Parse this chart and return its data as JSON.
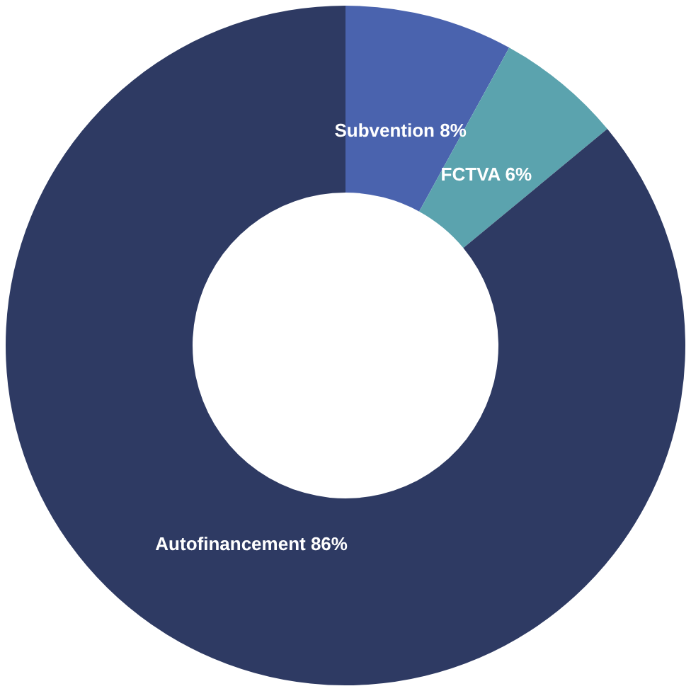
{
  "chart_data": {
    "type": "donut",
    "categories": [
      "Subvention",
      "FCTVA",
      "Autofinancement"
    ],
    "values": [
      8,
      6,
      86
    ],
    "value_labels": [
      "8%",
      "6%",
      "86%"
    ],
    "colors": [
      "#4a63ae",
      "#5ba3ae",
      "#2e3a63"
    ],
    "legend": false
  }
}
